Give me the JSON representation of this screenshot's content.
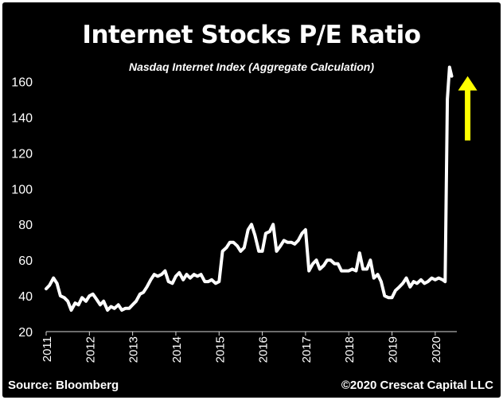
{
  "colors": {
    "background": "#000000",
    "text": "#ffffff",
    "line": "#ffffff",
    "arrow": "#ffff00"
  },
  "icons": {
    "arrow": "up-arrow-icon"
  },
  "footer": {
    "source": "Source: Bloomberg",
    "copyright": "©2020 Crescat Capital LLC"
  },
  "chart_data": {
    "type": "line",
    "title": "Internet Stocks P/E Ratio",
    "subtitle": "Nasdaq Internet Index (Aggregate Calculation)",
    "xlabel": "",
    "ylabel": "",
    "xlim": [
      2011.0,
      2020.5
    ],
    "ylim": [
      20,
      170
    ],
    "yticks": [
      20,
      40,
      60,
      80,
      100,
      120,
      140,
      160
    ],
    "xticks": [
      2011,
      2012,
      2013,
      2014,
      2015,
      2016,
      2017,
      2018,
      2019,
      2020
    ],
    "xtick_labels": [
      "2011",
      "2012",
      "2013",
      "2014",
      "2015",
      "2016",
      "2017",
      "2018",
      "2019",
      "2020"
    ],
    "xtick_rotation": "vertical",
    "grid": false,
    "legend": "none",
    "series": [
      {
        "x": [
          2011.0,
          2011.08,
          2011.17,
          2011.25,
          2011.33,
          2011.42,
          2011.5,
          2011.58,
          2011.67,
          2011.75,
          2011.83,
          2011.92,
          2012.0,
          2012.08,
          2012.17,
          2012.25,
          2012.33,
          2012.42,
          2012.5,
          2012.58,
          2012.67,
          2012.75,
          2012.83,
          2012.92,
          2013.0,
          2013.08,
          2013.17,
          2013.25,
          2013.33,
          2013.42,
          2013.5,
          2013.58,
          2013.67,
          2013.75,
          2013.83,
          2013.92,
          2014.0,
          2014.08,
          2014.17,
          2014.25,
          2014.33,
          2014.42,
          2014.5,
          2014.58,
          2014.67,
          2014.75,
          2014.83,
          2014.92,
          2015.0,
          2015.08,
          2015.17,
          2015.25,
          2015.33,
          2015.42,
          2015.5,
          2015.58,
          2015.67,
          2015.75,
          2015.83,
          2015.92,
          2016.0,
          2016.08,
          2016.17,
          2016.25,
          2016.33,
          2016.42,
          2016.5,
          2016.58,
          2016.67,
          2016.75,
          2016.83,
          2016.92,
          2017.0,
          2017.08,
          2017.17,
          2017.25,
          2017.33,
          2017.42,
          2017.5,
          2017.58,
          2017.67,
          2017.75,
          2017.83,
          2017.92,
          2018.0,
          2018.08,
          2018.17,
          2018.25,
          2018.33,
          2018.42,
          2018.5,
          2018.58,
          2018.67,
          2018.75,
          2018.83,
          2018.92,
          2019.0,
          2019.08,
          2019.17,
          2019.25,
          2019.33,
          2019.42,
          2019.5,
          2019.58,
          2019.67,
          2019.75,
          2019.83,
          2019.92,
          2020.0,
          2020.08,
          2020.17,
          2020.23,
          2020.28,
          2020.33,
          2020.38
        ],
        "values": [
          44,
          46,
          50,
          47,
          40,
          39,
          37,
          32,
          36,
          35,
          39,
          37,
          40,
          41,
          38,
          35,
          37,
          32,
          34,
          33,
          35,
          32,
          33,
          33,
          35,
          37,
          41,
          42,
          45,
          49,
          52,
          51,
          52,
          54,
          48,
          47,
          51,
          53,
          49,
          52,
          50,
          52,
          51,
          52,
          48,
          48,
          49,
          47,
          48,
          65,
          67,
          70,
          70,
          68,
          65,
          67,
          77,
          80,
          74,
          65,
          65,
          75,
          76,
          80,
          65,
          68,
          71,
          70,
          70,
          69,
          71,
          75,
          77,
          54,
          58,
          60,
          55,
          57,
          60,
          60,
          58,
          58,
          54,
          54,
          54,
          55,
          54,
          64,
          55,
          55,
          60,
          50,
          52,
          48,
          40,
          39,
          39,
          43,
          45,
          47,
          50,
          45,
          48,
          47,
          49,
          47,
          48,
          50,
          49,
          50,
          49,
          48,
          150,
          168,
          163
        ]
      }
    ],
    "annotations": [
      {
        "type": "arrow",
        "direction": "up",
        "color": "#ffff00",
        "x_from": 2020.75,
        "y_from": 127,
        "x_to": 2020.75,
        "y_to": 163
      }
    ]
  }
}
